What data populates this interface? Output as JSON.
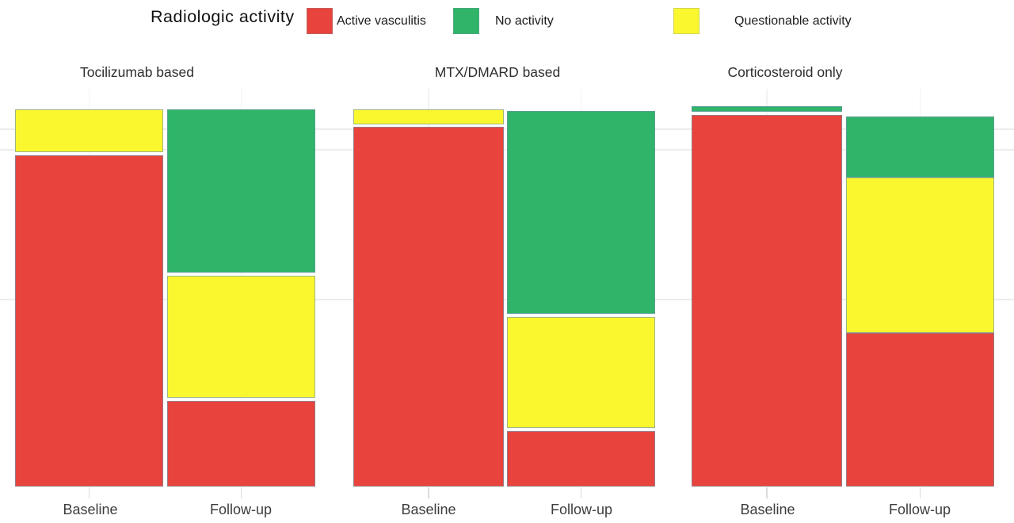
{
  "legend": {
    "title": "Radiologic activity",
    "items": [
      {
        "label": "Active vasculitis",
        "color": "#e8433c"
      },
      {
        "label": "No activity",
        "color": "#2fb46a"
      },
      {
        "label": "Questionable activity",
        "color": "#fbf72e"
      }
    ]
  },
  "chart_data": {
    "type": "mosaic",
    "title": "Radiologic activity",
    "legend_position": "top",
    "x_categories": [
      "Baseline",
      "Follow-up"
    ],
    "categories": [
      "Active vasculitis",
      "No activity",
      "Questionable activity"
    ],
    "colors": {
      "Active vasculitis": "#e8433c",
      "No activity": "#2fb46a",
      "Questionable activity": "#fbf72e"
    },
    "ylim": [
      0,
      1
    ],
    "grid": "faint",
    "facets": [
      {
        "title": "Tocilizumab based",
        "bars": [
          {
            "label": "Baseline",
            "segments": [
              {
                "category": "Questionable activity",
                "proportion": 0.115
              },
              {
                "category": "Active vasculitis",
                "proportion": 0.885
              }
            ]
          },
          {
            "label": "Follow-up",
            "segments": [
              {
                "category": "No activity",
                "proportion": 0.44
              },
              {
                "category": "Questionable activity",
                "proportion": 0.33
              },
              {
                "category": "Active vasculitis",
                "proportion": 0.23
              }
            ]
          }
        ]
      },
      {
        "title": "MTX/DMARD based",
        "bars": [
          {
            "label": "Baseline",
            "segments": [
              {
                "category": "Questionable activity",
                "proportion": 0.04
              },
              {
                "category": "Active vasculitis",
                "proportion": 0.96
              }
            ]
          },
          {
            "label": "Follow-up",
            "segments": [
              {
                "category": "No activity",
                "proportion": 0.55
              },
              {
                "category": "Questionable activity",
                "proportion": 0.3
              },
              {
                "category": "Active vasculitis",
                "proportion": 0.15
              }
            ]
          }
        ]
      },
      {
        "title": "Corticosteroid only",
        "bars": [
          {
            "label": "Baseline",
            "segments": [
              {
                "category": "No activity",
                "proportion": 0.015
              },
              {
                "category": "Active vasculitis",
                "proportion": 0.985
              }
            ]
          },
          {
            "label": "Follow-up",
            "segments": [
              {
                "category": "No activity",
                "proportion": 0.165
              },
              {
                "category": "Questionable activity",
                "proportion": 0.42
              },
              {
                "category": "Active vasculitis",
                "proportion": 0.415
              }
            ]
          }
        ]
      }
    ]
  }
}
